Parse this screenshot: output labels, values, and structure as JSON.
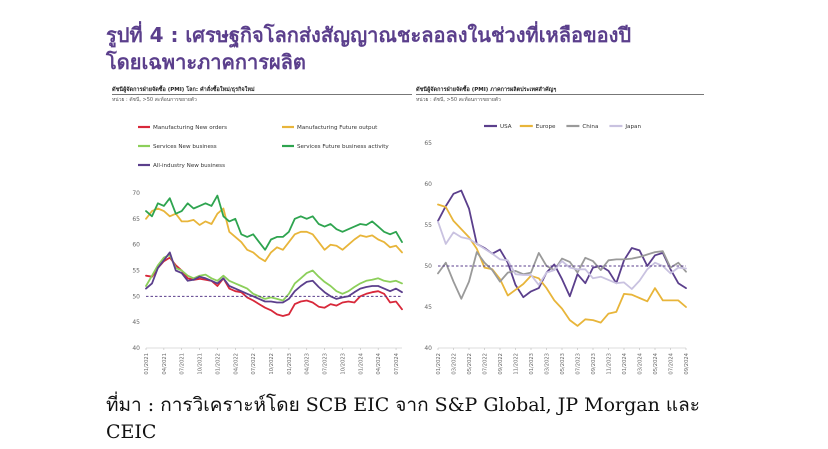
{
  "title": {
    "line1": "รูปที่ 4 : เศรษฐกิจโลกส่งสัญญาณชะลอลงในช่วงที่เหลือของปี",
    "line2": "โดยเฉพาะภาคการผลิต"
  },
  "source": "ที่มา : การวิเคราะห์โดย SCB EIC จาก S&P Global, JP Morgan และ CEIC",
  "colors": {
    "manufacturing_new_orders": "#d8283a",
    "manufacturing_future_output": "#e8b53a",
    "services_new_business": "#8ccf5a",
    "services_future_activity": "#2ea44f",
    "all_industry_new_business": "#5b3f8c",
    "usa": "#5b3f8c",
    "europe": "#e8b53a",
    "china": "#9a9a9a",
    "japan": "#c9c2e0",
    "reference": "#5b3f8c"
  },
  "chart_data": [
    {
      "id": "left",
      "type": "line",
      "title": "ดัชนีผู้จัดการฝ่ายจัดซื้อ (PMI) โลก: คำสั่งซื้อใหม่/ธุรกิจใหม่",
      "subtitle": "หน่วย : ดัชนี, >50 สะท้อนการขยายตัว",
      "ylim": [
        40,
        70
      ],
      "yticks": [
        40,
        45,
        50,
        55,
        60,
        65,
        70
      ],
      "reference_line": 50,
      "grid": false,
      "legend_position": "top",
      "x": [
        "01/2021",
        "02/2021",
        "03/2021",
        "04/2021",
        "05/2021",
        "06/2021",
        "07/2021",
        "08/2021",
        "09/2021",
        "10/2021",
        "11/2021",
        "12/2021",
        "01/2022",
        "02/2022",
        "03/2022",
        "04/2022",
        "05/2022",
        "06/2022",
        "07/2022",
        "08/2022",
        "09/2022",
        "10/2022",
        "11/2022",
        "12/2022",
        "01/2023",
        "02/2023",
        "03/2023",
        "04/2023",
        "05/2023",
        "06/2023",
        "07/2023",
        "08/2023",
        "09/2023",
        "10/2023",
        "11/2023",
        "12/2023",
        "01/2024",
        "02/2024",
        "03/2024",
        "04/2024",
        "05/2024",
        "06/2024",
        "07/2024",
        "08/2024"
      ],
      "xtick_labels": [
        "01/2021",
        "04/2021",
        "07/2021",
        "10/2021",
        "01/2022",
        "04/2022",
        "07/2022",
        "10/2022",
        "01/2023",
        "04/2023",
        "07/2023",
        "10/2023",
        "01/2024",
        "04/2024",
        "07/2024"
      ],
      "series": [
        {
          "key": "manufacturing_new_orders",
          "name": "Manufacturing New orders",
          "values": [
            54.0,
            53.8,
            55.5,
            56.8,
            57.5,
            56.0,
            55.0,
            53.5,
            53.2,
            53.4,
            53.2,
            53.0,
            52.0,
            53.5,
            51.5,
            51.0,
            50.8,
            49.8,
            49.2,
            48.5,
            47.8,
            47.3,
            46.5,
            46.2,
            46.5,
            48.5,
            49.0,
            49.2,
            48.8,
            48.0,
            47.8,
            48.5,
            48.2,
            48.8,
            49.0,
            48.8,
            50.0,
            50.5,
            50.8,
            51.0,
            50.5,
            48.8,
            49.0,
            47.5
          ]
        },
        {
          "key": "manufacturing_future_output",
          "name": "Manufacturing Future output",
          "values": [
            65.0,
            66.5,
            67.0,
            66.5,
            65.5,
            66.0,
            64.5,
            64.5,
            64.8,
            63.8,
            64.5,
            64.0,
            66.0,
            67.0,
            62.5,
            61.5,
            60.5,
            59.0,
            58.5,
            57.5,
            56.8,
            58.5,
            59.5,
            59.0,
            60.5,
            62.0,
            62.5,
            62.5,
            62.0,
            60.5,
            59.0,
            60.0,
            59.8,
            59.0,
            60.0,
            61.0,
            61.8,
            61.5,
            61.8,
            61.0,
            60.5,
            59.5,
            59.8,
            58.5
          ]
        },
        {
          "key": "services_new_business",
          "name": "Services New business",
          "values": [
            52.0,
            54.0,
            56.0,
            57.5,
            58.0,
            55.5,
            55.0,
            54.0,
            53.5,
            54.0,
            54.2,
            53.5,
            53.0,
            54.0,
            53.0,
            52.5,
            52.0,
            51.5,
            50.5,
            50.0,
            49.5,
            49.8,
            49.5,
            49.2,
            50.5,
            52.5,
            53.5,
            54.5,
            55.0,
            53.8,
            52.8,
            52.0,
            51.0,
            50.5,
            51.0,
            51.8,
            52.5,
            53.0,
            53.2,
            53.5,
            53.0,
            52.8,
            53.0,
            52.5
          ]
        },
        {
          "key": "services_future_activity",
          "name": "Services Future business activity",
          "values": [
            66.5,
            65.5,
            68.0,
            67.5,
            69.0,
            66.0,
            66.5,
            68.0,
            67.0,
            67.5,
            68.0,
            67.5,
            69.5,
            65.5,
            64.5,
            65.0,
            62.0,
            61.5,
            62.0,
            60.5,
            59.0,
            61.0,
            61.5,
            61.5,
            62.5,
            65.0,
            65.5,
            65.0,
            65.5,
            64.0,
            63.5,
            64.0,
            63.0,
            62.5,
            63.0,
            63.5,
            64.0,
            63.8,
            64.5,
            63.5,
            62.5,
            62.0,
            62.5,
            60.5
          ]
        },
        {
          "key": "all_industry_new_business",
          "name": "All-industry New business",
          "values": [
            51.5,
            52.5,
            55.5,
            57.0,
            58.5,
            55.0,
            54.5,
            53.0,
            53.2,
            53.8,
            53.5,
            53.0,
            52.5,
            53.5,
            52.0,
            51.5,
            51.0,
            50.5,
            50.0,
            49.5,
            49.0,
            49.0,
            48.8,
            48.8,
            49.5,
            51.0,
            52.0,
            52.8,
            53.0,
            51.8,
            50.8,
            50.0,
            49.5,
            49.8,
            50.0,
            50.8,
            51.5,
            51.8,
            52.0,
            52.0,
            51.5,
            51.0,
            51.5,
            50.8
          ]
        }
      ]
    },
    {
      "id": "right",
      "type": "line",
      "title": "ดัชนีผู้จัดการฝ่ายจัดซื้อ (PMI) ภาคการผลิตประเทศสำคัญๆ",
      "subtitle": "หน่วย : ดัชนี, >50 สะท้อนการขยายตัว",
      "ylim": [
        40,
        65
      ],
      "yticks": [
        40,
        45,
        50,
        55,
        60,
        65
      ],
      "reference_line": 50,
      "grid": false,
      "legend_position": "top",
      "x": [
        "01/2022",
        "02/2022",
        "03/2022",
        "04/2022",
        "05/2022",
        "06/2022",
        "07/2022",
        "08/2022",
        "09/2022",
        "10/2022",
        "11/2022",
        "12/2022",
        "01/2023",
        "02/2023",
        "03/2023",
        "04/2023",
        "05/2023",
        "06/2023",
        "07/2023",
        "08/2023",
        "09/2023",
        "10/2023",
        "11/2023",
        "12/2023",
        "01/2024",
        "02/2024",
        "03/2024",
        "04/2024",
        "05/2024",
        "06/2024",
        "07/2024",
        "08/2024",
        "09/2024"
      ],
      "xtick_labels": [
        "01/2022",
        "03/2022",
        "05/2022",
        "07/2022",
        "09/2022",
        "11/2022",
        "01/2023",
        "03/2023",
        "05/2023",
        "07/2023",
        "09/2023",
        "11/2023",
        "01/2024",
        "03/2024",
        "05/2024",
        "07/2024",
        "09/2024"
      ],
      "series": [
        {
          "key": "usa",
          "name": "USA",
          "values": [
            55.5,
            57.3,
            58.8,
            59.2,
            57.0,
            52.7,
            52.2,
            51.5,
            52.0,
            50.4,
            47.7,
            46.2,
            46.9,
            47.3,
            49.2,
            50.2,
            48.4,
            46.3,
            49.0,
            47.9,
            49.8,
            50.0,
            49.4,
            47.9,
            50.7,
            52.2,
            51.9,
            50.0,
            51.3,
            51.6,
            49.6,
            47.9,
            47.3
          ]
        },
        {
          "key": "europe",
          "name": "Europe",
          "values": [
            57.5,
            57.2,
            55.5,
            54.5,
            53.5,
            52.1,
            49.8,
            49.6,
            48.4,
            46.4,
            47.1,
            47.8,
            48.8,
            48.5,
            47.3,
            45.8,
            44.8,
            43.4,
            42.7,
            43.5,
            43.4,
            43.1,
            44.2,
            44.4,
            46.6,
            46.5,
            46.1,
            45.7,
            47.3,
            45.8,
            45.8,
            45.8,
            45.0
          ]
        },
        {
          "key": "china",
          "name": "China",
          "values": [
            49.1,
            50.4,
            48.1,
            46.0,
            48.1,
            51.7,
            50.4,
            49.5,
            48.1,
            49.2,
            49.4,
            49.0,
            49.2,
            51.6,
            50.0,
            49.5,
            50.9,
            50.5,
            49.2,
            51.0,
            50.6,
            49.5,
            50.7,
            50.8,
            50.8,
            50.9,
            51.1,
            51.4,
            51.7,
            51.8,
            49.8,
            50.4,
            49.3
          ]
        },
        {
          "key": "japan",
          "name": "Japan",
          "values": [
            55.4,
            52.7,
            54.1,
            53.5,
            53.3,
            52.7,
            52.1,
            51.5,
            50.8,
            50.7,
            49.0,
            48.9,
            48.9,
            47.7,
            49.2,
            49.5,
            50.6,
            49.8,
            49.6,
            49.6,
            48.5,
            48.7,
            48.3,
            47.9,
            48.0,
            47.2,
            48.2,
            49.6,
            50.4,
            50.0,
            49.1,
            49.8,
            49.7
          ]
        }
      ]
    }
  ]
}
